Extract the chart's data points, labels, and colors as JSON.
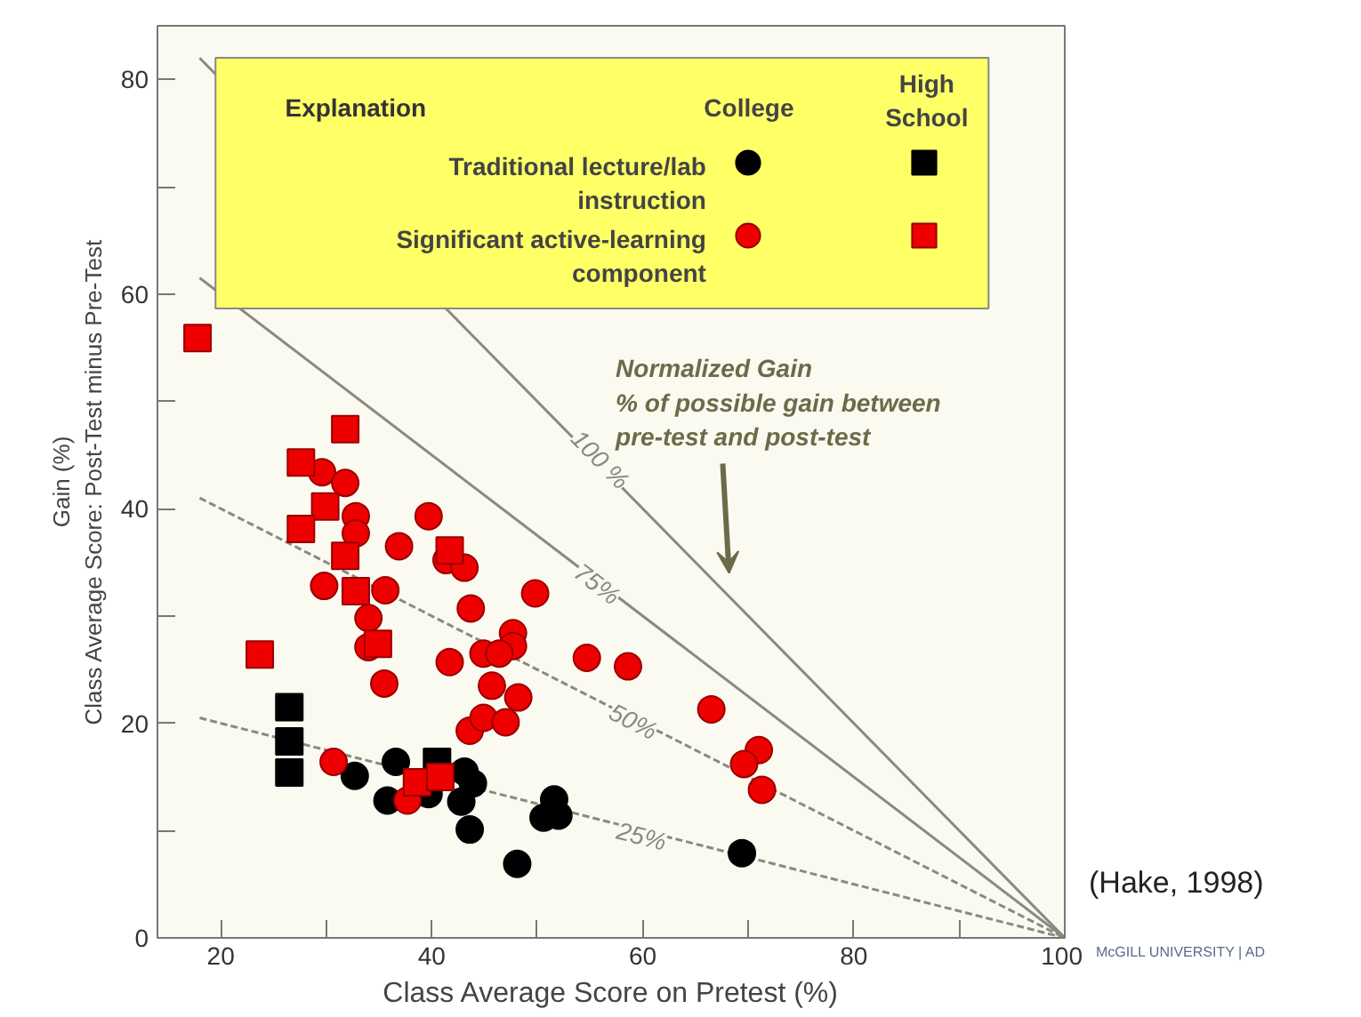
{
  "chart_data": {
    "type": "scatter",
    "xlabel": "Class Average Score on Pretest (%)",
    "ylabel": "Gain (%)\nClass Average Score: Post-Test minus Pre-Test",
    "legend_title": "Explanation",
    "legend": "top",
    "grid": false,
    "xlim": [
      14,
      100
    ],
    "ylim": [
      0,
      85
    ],
    "xticks": [
      20,
      {
        "value": 30,
        "label": null
      },
      40,
      {
        "value": 50,
        "label": null
      },
      60,
      {
        "value": 70,
        "label": null
      },
      80,
      {
        "value": 90,
        "label": null
      },
      100
    ],
    "yticks": [
      0,
      {
        "value": 10,
        "label": null
      },
      20,
      {
        "value": 30,
        "label": null
      },
      40,
      {
        "value": 50,
        "label": null
      },
      60,
      {
        "value": 70,
        "label": null
      },
      80
    ],
    "series": [
      {
        "name": "Traditional lecture/lab\ninstruction",
        "color": "#000000",
        "marker": "circle",
        "x": [
          32.7,
          36.6,
          35.8,
          39.7,
          43.1,
          43.9,
          42.8,
          43.6,
          48.1,
          51.6,
          50.6,
          52.0,
          69.4
        ],
        "values": [
          15.1,
          16.4,
          12.8,
          13.4,
          15.5,
          14.4,
          12.7,
          10.1,
          6.9,
          12.9,
          11.2,
          11.4,
          7.9
        ]
      },
      {
        "color": "#000000",
        "marker": "square",
        "x": [
          26.5,
          26.5,
          26.5,
          40.5
        ],
        "values": [
          21.5,
          18.3,
          15.4,
          16.4
        ]
      },
      {
        "name": "Significant active-learning\ncomponent",
        "color": "#ee0000",
        "marker": "circle",
        "x": [
          29.6,
          31.8,
          32.8,
          32.8,
          39.7,
          36.9,
          41.4,
          43.1,
          49.8,
          29.8,
          35.6,
          43.7,
          34.0,
          34.0,
          47.7,
          47.7,
          41.7,
          44.9,
          46.4,
          54.7,
          35.5,
          45.7,
          48.2,
          43.6,
          44.9,
          47.0,
          30.7,
          37.7,
          58.6,
          66.5,
          71.0,
          69.6,
          71.3
        ],
        "values": [
          43.4,
          42.4,
          39.3,
          37.7,
          39.3,
          36.5,
          35.2,
          34.5,
          32.1,
          32.8,
          32.4,
          30.7,
          29.8,
          27.1,
          28.4,
          27.2,
          25.7,
          26.5,
          26.5,
          26.1,
          23.7,
          23.5,
          22.4,
          19.3,
          20.5,
          20.1,
          16.4,
          12.8,
          25.3,
          21.3,
          17.5,
          16.2,
          13.8
        ]
      },
      {
        "color": "#ee0000",
        "marker": "square",
        "x": [
          17.8,
          31.8,
          27.6,
          29.9,
          27.6,
          31.8,
          32.8,
          34.9,
          23.7,
          41.7,
          38.6,
          40.8
        ],
        "values": [
          55.9,
          47.4,
          44.3,
          40.2,
          38.1,
          35.6,
          32.3,
          27.4,
          26.4,
          36.1,
          14.5,
          15.0
        ]
      },
      {
        "type": "line",
        "color": "#8a8a80",
        "line_style": "solid",
        "x": [
          18,
          100
        ],
        "values": [
          82,
          0
        ]
      },
      {
        "type": "line",
        "color": "#8a8a80",
        "line_style": "solid",
        "x": [
          18,
          100
        ],
        "values": [
          61.5,
          0
        ]
      },
      {
        "type": "line",
        "color": "#8a8a80",
        "line_style": "dashed",
        "x": [
          18,
          100
        ],
        "values": [
          41,
          0
        ]
      },
      {
        "type": "line",
        "color": "#8a8a80",
        "line_style": "dashed",
        "x": [
          18,
          100
        ],
        "values": [
          20.5,
          0
        ]
      }
    ],
    "annotations": [
      "College",
      "High\nSchool",
      "Normalized Gain\n% of possible gain between\n  pre-test and post-test",
      "(Hake, 1998)",
      "McGILL UNIVERSITY | AD",
      {
        "text": "100 %",
        "x": 56.0,
        "y": 44.6
      },
      {
        "text": "75%",
        "x": 55.7,
        "y": 33.0
      },
      {
        "text": "50%",
        "x": 59.1,
        "y": 20.2
      },
      {
        "text": "25%",
        "x": 59.9,
        "y": 9.5
      }
    ]
  }
}
